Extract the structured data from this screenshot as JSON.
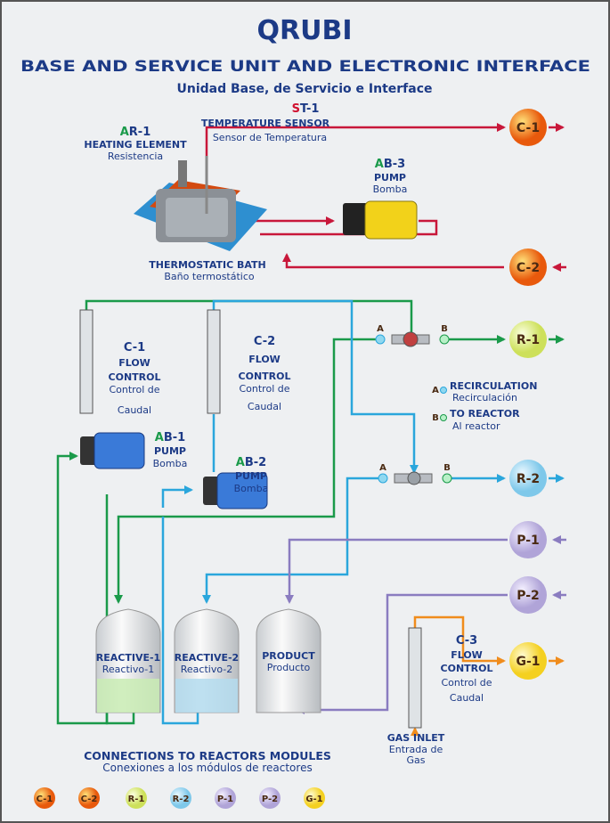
{
  "header": {
    "title": "QRUBI",
    "subtitle": "BASE AND SERVICE UNIT AND ELECTRONIC INTERFACE",
    "subtitle_es": "Unidad Base, de Servicio e Interface"
  },
  "heating_element": {
    "prefix": "A",
    "code": "R-1",
    "label": "HEATING ELEMENT",
    "label_es": "Resistencia"
  },
  "temperature_sensor": {
    "prefix": "S",
    "code": "T-1",
    "label": "TEMPERATURE SENSOR",
    "label_es": "Sensor de Temperatura"
  },
  "pump_ab3": {
    "prefix": "A",
    "code": "B-3",
    "label": "PUMP",
    "label_es": "Bomba"
  },
  "bath": {
    "label": "THERMOSTATIC BATH",
    "label_es": "Baño termostático"
  },
  "flow_c1": {
    "code": "C-1",
    "lines": [
      "FLOW",
      "CONTROL",
      "Control de",
      "Caudal"
    ]
  },
  "flow_c2": {
    "code": "C-2",
    "lines": [
      "FLOW",
      "CONTROL",
      "Control de",
      "Caudal"
    ]
  },
  "flow_c3": {
    "code": "C-3",
    "lines": [
      "FLOW",
      "CONTROL",
      "Control de",
      "Caudal"
    ]
  },
  "pump_ab1": {
    "prefix": "A",
    "code": "B-1",
    "label": "PUMP",
    "label_es": "Bomba"
  },
  "pump_ab2": {
    "prefix": "A",
    "code": "B-2",
    "label": "PUMP",
    "label_es": "Bomba"
  },
  "valves": [
    {
      "a": "A",
      "b": "B"
    },
    {
      "a": "A",
      "b": "B"
    }
  ],
  "legend": [
    {
      "key": "A",
      "label": "RECIRCULATION",
      "label_es": "Recirculación"
    },
    {
      "key": "B",
      "label": "TO REACTOR",
      "label_es": "Al reactor"
    }
  ],
  "connectors": [
    {
      "label": "C-1"
    },
    {
      "label": "C-2"
    },
    {
      "label": "R-1"
    },
    {
      "label": "R-2"
    },
    {
      "label": "P-1"
    },
    {
      "label": "P-2"
    },
    {
      "label": "G-1"
    }
  ],
  "tanks": [
    {
      "label": "REACTIVE-1",
      "label_es": "Reactivo-1"
    },
    {
      "label": "REACTIVE-2",
      "label_es": "Reactivo-2"
    },
    {
      "label": "PRODUCT",
      "label_es": "Producto"
    }
  ],
  "gas_inlet": {
    "label": "GAS INLET",
    "lines": [
      "Entrada de",
      "Gas"
    ]
  },
  "footer": {
    "title": "CONNECTIONS TO REACTORS MODULES",
    "title_es": "Conexiones a los módulos de reactores",
    "modules": [
      "C-1",
      "C-2",
      "R-1",
      "R-2",
      "P-1",
      "P-2",
      "G-1"
    ]
  }
}
